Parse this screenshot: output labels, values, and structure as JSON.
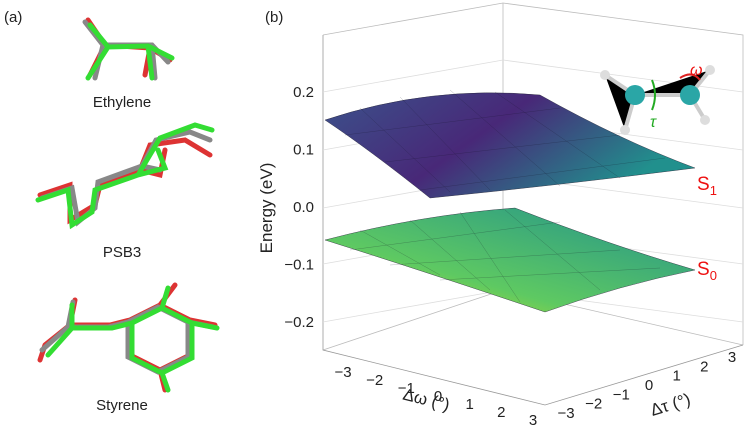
{
  "panel_a": {
    "label": "(a)",
    "molecules": [
      "Ethylene",
      "PSB3",
      "Styrene"
    ]
  },
  "panel_b": {
    "label": "(b)",
    "z_axis": {
      "title": "Energy (eV)",
      "ticks": [
        "0.2",
        "0.1",
        "0.0",
        "−0.1",
        "−0.2"
      ]
    },
    "x_axis": {
      "title": "Δω (°)",
      "ticks": [
        "−3",
        "−2",
        "−1",
        "0",
        "1",
        "2",
        "3"
      ]
    },
    "y_axis": {
      "title": "Δτ (°)",
      "ticks": [
        "−3",
        "−2",
        "−1",
        "0",
        "1",
        "2",
        "3"
      ]
    },
    "surfaces": [
      {
        "letter": "S",
        "subscript": "1"
      },
      {
        "letter": "S",
        "subscript": "0"
      }
    ],
    "inset": {
      "omega": "ω",
      "tau": "τ"
    }
  }
}
